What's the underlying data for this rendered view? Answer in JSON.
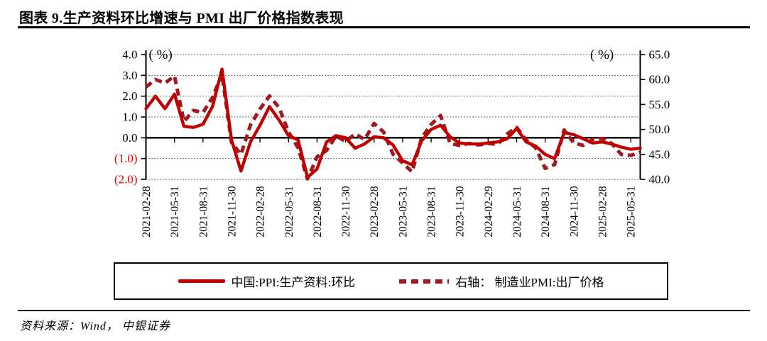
{
  "figure": {
    "title": "图表 9.生产资料环比增速与 PMI 出厂价格指数表现",
    "source": "资料来源：Wind， 中银证券"
  },
  "legend": {
    "series1_label": "中国:PPI:生产资料:环比",
    "series2_label": "右轴： 制造业PMI:出厂价格"
  },
  "colors": {
    "ppi_line": "#c00000",
    "pmi_line": "#9e1a20",
    "negative_tick_label": "#e60000",
    "axis": "#000000",
    "gridline": "#2f2f2f"
  },
  "chart_data": {
    "type": "line",
    "title": "生产资料环比增速与PMI出厂价格指数表现",
    "left_axis": {
      "unit_label": "( %)",
      "range": [
        -2.0,
        4.0
      ],
      "tick_labels": [
        "4.0",
        "3.0",
        "2.0",
        "1.0",
        "0.0",
        "(1.0)",
        "(2.0)"
      ],
      "tick_values": [
        4,
        3,
        2,
        1,
        0,
        -1,
        -2
      ]
    },
    "right_axis": {
      "unit_label": "( %)",
      "range": [
        40.0,
        65.0
      ],
      "tick_labels": [
        "65.0",
        "60.0",
        "55.0",
        "50.0",
        "45.0",
        "40.0"
      ],
      "tick_values": [
        65,
        60,
        55,
        50,
        45,
        40
      ]
    },
    "x_tick_labels": [
      "2021-02-28",
      "2021-05-31",
      "2021-08-31",
      "2021-11-30",
      "2022-02-28",
      "2022-05-31",
      "2022-08-31",
      "2022-11-30",
      "2023-02-28",
      "2023-05-31",
      "2023-08-31",
      "2023-11-30",
      "2024-02-29",
      "2024-05-31",
      "2024-08-31",
      "2024-11-30",
      "2025-02-28",
      "2025-05-31"
    ],
    "x_months": [
      "2021-02",
      "2021-03",
      "2021-04",
      "2021-05",
      "2021-06",
      "2021-07",
      "2021-08",
      "2021-09",
      "2021-10",
      "2021-11",
      "2021-12",
      "2022-01",
      "2022-02",
      "2022-03",
      "2022-04",
      "2022-05",
      "2022-06",
      "2022-07",
      "2022-08",
      "2022-09",
      "2022-10",
      "2022-11",
      "2022-12",
      "2023-01",
      "2023-02",
      "2023-03",
      "2023-04",
      "2023-05",
      "2023-06",
      "2023-07",
      "2023-08",
      "2023-09",
      "2023-10",
      "2023-11",
      "2023-12",
      "2024-01",
      "2024-02",
      "2024-03",
      "2024-04",
      "2024-05",
      "2024-06",
      "2024-07",
      "2024-08",
      "2024-09",
      "2024-10",
      "2024-11",
      "2024-12",
      "2025-01",
      "2025-02",
      "2025-03",
      "2025-04",
      "2025-05",
      "2025-06"
    ],
    "grid": "dotted-horizontal",
    "legend_position": "bottom-box",
    "series": [
      {
        "name": "中国:PPI:生产资料:环比",
        "axis": "left",
        "style": "solid",
        "color": "#c00000",
        "values": [
          1.4,
          2.0,
          1.4,
          2.1,
          0.55,
          0.5,
          0.65,
          1.5,
          3.3,
          -0.1,
          -1.6,
          -0.2,
          0.6,
          1.5,
          0.85,
          0.1,
          -0.1,
          -1.9,
          -1.5,
          -0.2,
          0.1,
          0.0,
          -0.5,
          -0.3,
          0.05,
          0.0,
          -0.35,
          -1.1,
          -1.3,
          -0.15,
          0.4,
          0.6,
          0.05,
          -0.25,
          -0.3,
          -0.3,
          -0.25,
          -0.2,
          -0.05,
          0.45,
          -0.2,
          -0.4,
          -0.8,
          -1.0,
          0.25,
          0.15,
          -0.05,
          -0.25,
          -0.2,
          -0.3,
          -0.45,
          -0.55,
          -0.5
        ]
      },
      {
        "name": "右轴： 制造业PMI:出厂价格",
        "axis": "right",
        "style": "dashed",
        "color": "#9e1a20",
        "values": [
          58.5,
          60.0,
          59.3,
          60.7,
          51.6,
          53.8,
          53.4,
          56.4,
          61.1,
          47.4,
          45.0,
          50.9,
          54.1,
          56.7,
          54.4,
          49.5,
          46.3,
          40.1,
          44.5,
          45.8,
          48.7,
          47.6,
          49.1,
          48.0,
          51.2,
          49.5,
          45.0,
          43.3,
          41.5,
          48.3,
          51.0,
          52.8,
          47.2,
          46.8,
          47.2,
          46.9,
          47.2,
          47.0,
          49.1,
          50.4,
          47.9,
          46.3,
          42.2,
          43.0,
          49.9,
          47.3,
          46.8,
          48.0,
          48.2,
          47.2,
          45.0,
          44.8,
          45.4
        ]
      }
    ]
  }
}
